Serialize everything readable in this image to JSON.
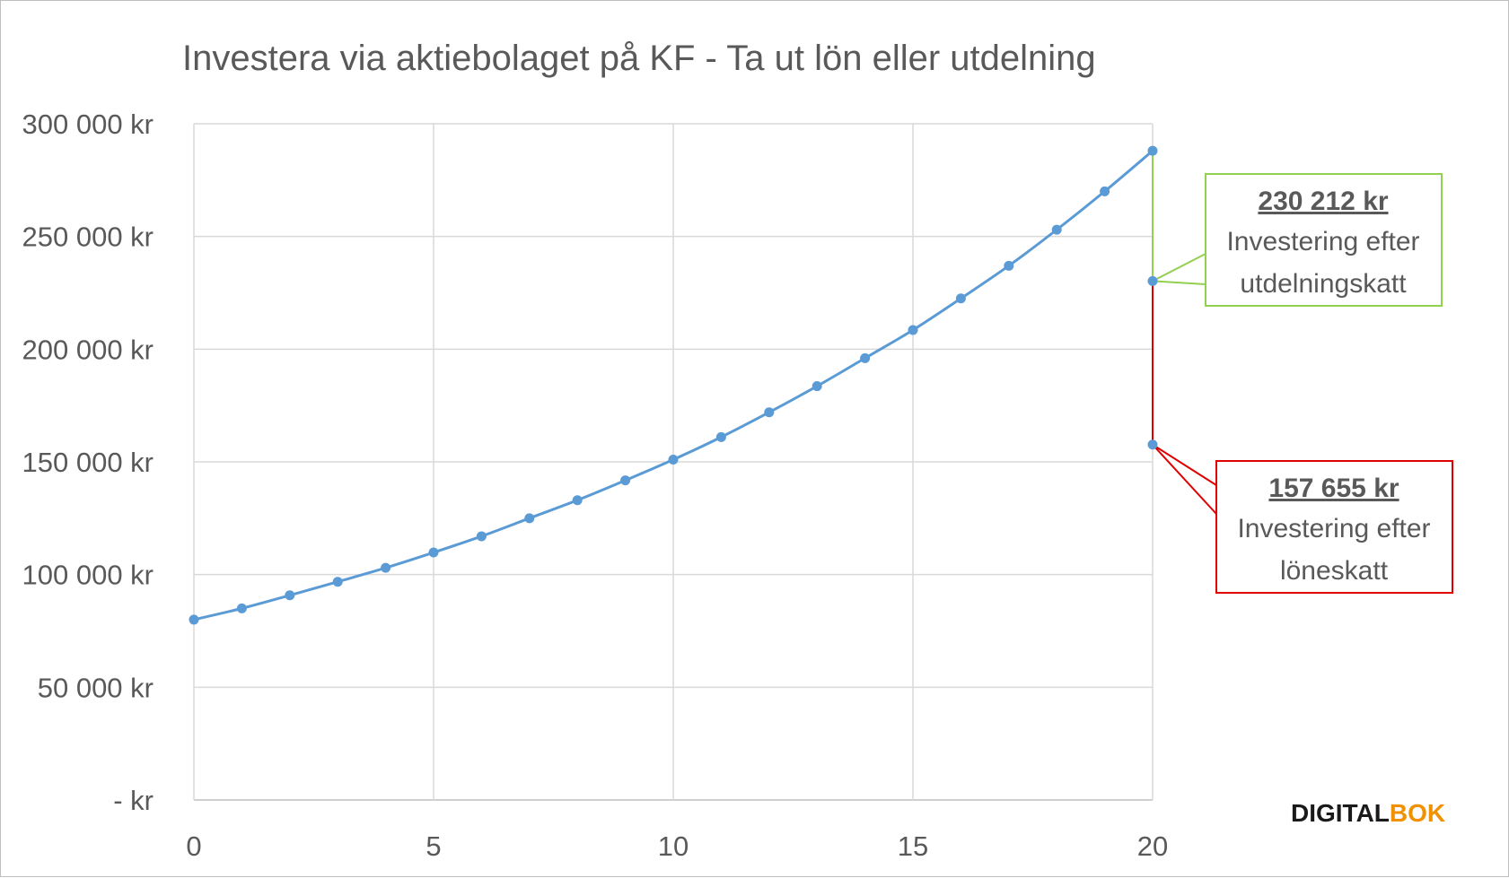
{
  "chart_data": {
    "type": "line",
    "title": "Investera via aktiebolaget på KF - Ta ut lön eller utdelning",
    "xlabel": "",
    "ylabel": "",
    "xlim": [
      0,
      20
    ],
    "ylim": [
      0,
      300000
    ],
    "x_ticks": [
      "0",
      "5",
      "10",
      "15",
      "20"
    ],
    "y_ticks": [
      "-   kr",
      "50 000 kr",
      "100 000 kr",
      "150 000 kr",
      "200 000 kr",
      "250 000 kr",
      "300 000 kr"
    ],
    "grid": true,
    "series": [
      {
        "color": "#5b9bd5",
        "x": [
          0,
          1,
          2,
          3,
          4,
          5,
          6,
          7,
          8,
          9,
          10,
          11,
          12,
          13,
          14,
          15,
          16,
          17,
          18,
          19,
          20
        ],
        "values": [
          80000,
          85000,
          90800,
          96800,
          103000,
          109800,
          117000,
          125000,
          133000,
          141800,
          151000,
          161000,
          172000,
          183600,
          196000,
          208500,
          222500,
          237000,
          253000,
          270000,
          288000
        ]
      }
    ],
    "extra_points": [
      {
        "x": 20,
        "value": 230212
      },
      {
        "x": 20,
        "value": 157655
      }
    ],
    "annotations": [
      {
        "id": "dividend",
        "value_label": "230 212 kr",
        "line1": "Investering efter",
        "line2": "utdelningskatt",
        "color": "#92d050",
        "x": 20,
        "y": 230212
      },
      {
        "id": "salary",
        "value_label": "157 655 kr",
        "line1": "Investering efter",
        "line2": "löneskatt",
        "color": "#e00000",
        "x": 20,
        "y": 157655
      }
    ]
  },
  "logo": {
    "part1": "DIGITAL",
    "part2": "BOK",
    "color1": "#1a1a1a",
    "color2": "#f29100"
  }
}
